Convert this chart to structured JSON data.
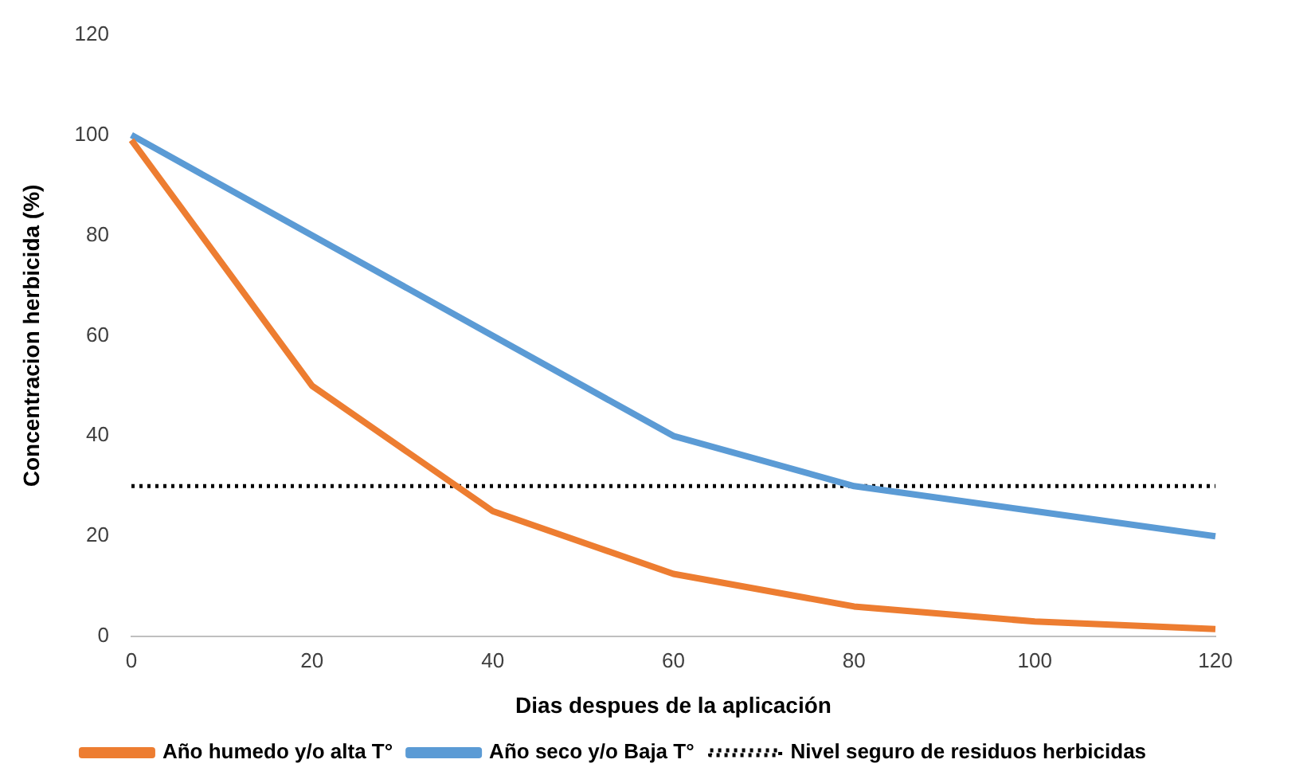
{
  "chart_data": {
    "type": "line",
    "xlabel": "Dias despues de la aplicación",
    "ylabel": "Concentracion herbicida (%)",
    "categories": [
      "0",
      "20",
      "40",
      "60",
      "80",
      "100",
      "120"
    ],
    "series": [
      {
        "name": "Año humedo y/o alta T°",
        "color": "#ed7d31",
        "values": [
          99,
          50,
          25,
          12.5,
          6,
          3,
          1.5
        ]
      },
      {
        "name": "Año seco y/o Baja T°",
        "color": "#5b9bd5",
        "values": [
          100,
          80,
          60,
          40,
          30,
          25,
          20
        ]
      },
      {
        "name": "Nivel seguro de residuos herbicidas",
        "color": "#000000",
        "line_style": "dotted",
        "values": [
          30,
          30,
          30,
          30,
          30,
          30,
          30
        ]
      }
    ],
    "ylim": [
      0,
      120
    ],
    "yticks": [
      0,
      20,
      40,
      60,
      80,
      100,
      120
    ],
    "grid": false,
    "legend": "bottom",
    "marker": "none"
  }
}
